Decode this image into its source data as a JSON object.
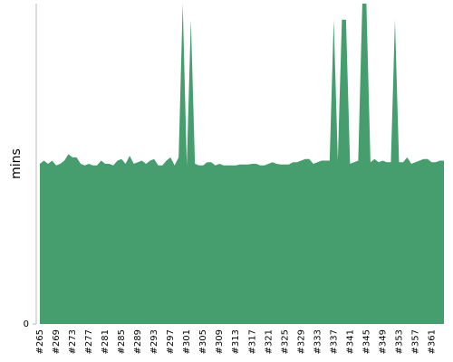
{
  "chart_data": {
    "type": "area",
    "ylabel": "mins",
    "color": "#469e6e",
    "ylim": [
      0,
      100
    ],
    "yticks": [
      0
    ],
    "categories": [
      "#265",
      null,
      null,
      null,
      "#269",
      null,
      null,
      null,
      "#273",
      null,
      null,
      null,
      "#277",
      null,
      null,
      null,
      "#281",
      null,
      null,
      null,
      "#285",
      null,
      null,
      null,
      "#289",
      null,
      null,
      null,
      "#293",
      null,
      null,
      null,
      "#297",
      null,
      null,
      null,
      "#301",
      null,
      null,
      null,
      "#305",
      null,
      null,
      null,
      "#309",
      null,
      null,
      null,
      "#313",
      null,
      null,
      null,
      "#317",
      null,
      null,
      null,
      "#321",
      null,
      null,
      null,
      "#325",
      null,
      null,
      null,
      "#329",
      null,
      null,
      null,
      "#333",
      null,
      null,
      null,
      "#337",
      null,
      null,
      null,
      "#341",
      null,
      null,
      null,
      "#345",
      null,
      null,
      null,
      "#349",
      null,
      null,
      null,
      "#353",
      null,
      null,
      null,
      "#357",
      null,
      null,
      null,
      "#361",
      null,
      null,
      null
    ],
    "values": [
      50,
      51,
      50,
      51,
      49.5,
      50,
      51,
      53,
      52,
      52,
      50,
      49.5,
      50,
      49.5,
      49.5,
      51,
      50,
      50,
      49.5,
      51,
      51.5,
      50,
      52.5,
      50,
      50.5,
      51,
      50,
      51,
      51.5,
      49.5,
      49.5,
      51,
      52,
      49.5,
      52,
      100,
      49.5,
      95,
      50,
      49.5,
      49.5,
      50.5,
      50.5,
      49.5,
      50,
      49.5,
      49.5,
      49.5,
      49.5,
      49.8,
      49.8,
      49.8,
      50,
      50,
      49.5,
      49.5,
      50,
      50.5,
      50,
      49.8,
      49.8,
      49.8,
      50.5,
      50.5,
      51,
      51.5,
      51.5,
      50,
      50.5,
      51,
      51,
      51,
      95,
      51,
      95,
      95,
      50,
      50.5,
      51,
      100,
      100,
      50.5,
      51.5,
      50.5,
      51,
      50.5,
      50.5,
      95,
      50.5,
      50.5,
      52,
      50,
      50.5,
      51,
      51.5,
      51.5,
      50.5,
      50.5,
      51,
      51
    ]
  }
}
